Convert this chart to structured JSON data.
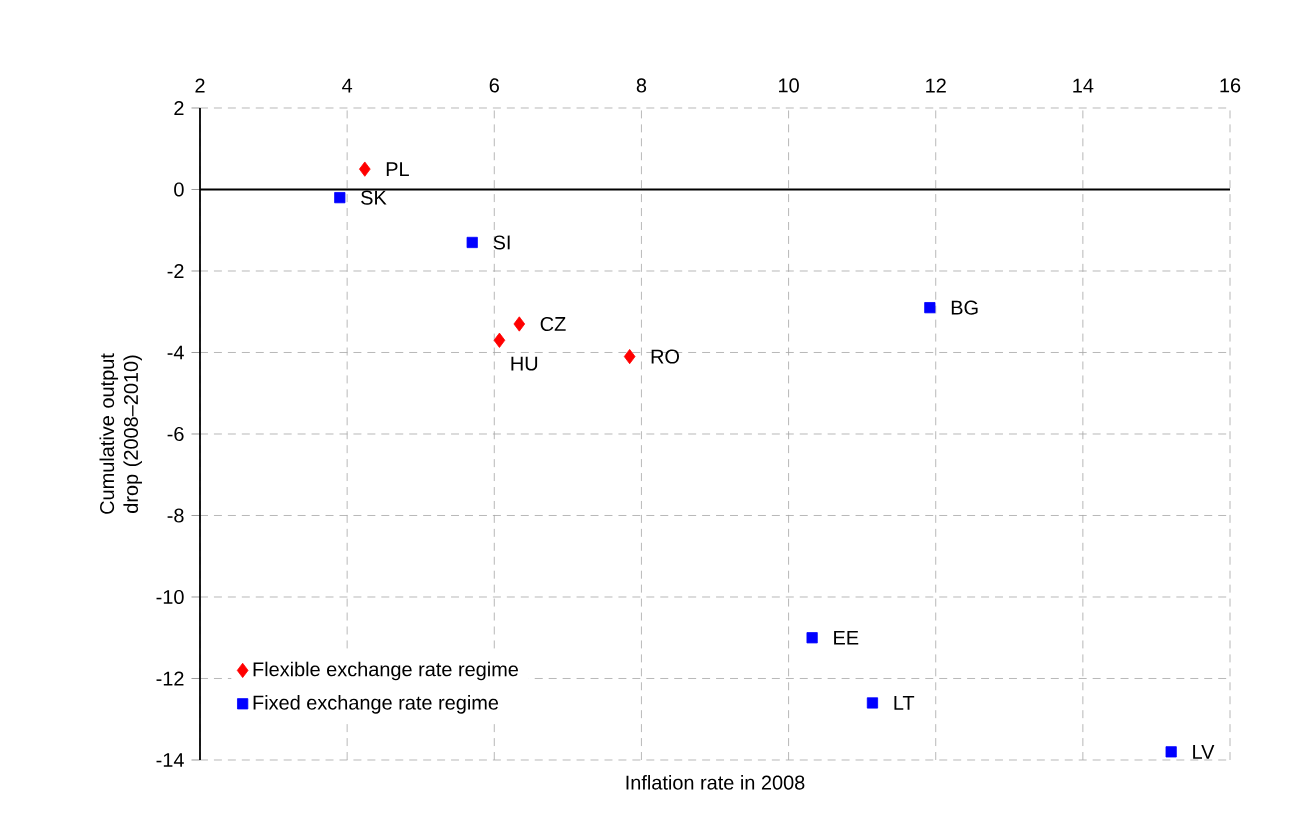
{
  "chart_data": {
    "type": "scatter",
    "xlabel": "Inflation rate in 2008",
    "ylabel": "Cumulative output drop (2008–2010)",
    "xlim": [
      2,
      16
    ],
    "xticks": [
      2,
      4,
      6,
      8,
      10,
      12,
      14,
      16
    ],
    "ylim": [
      -14,
      2
    ],
    "yticks": [
      -14,
      -12,
      -10,
      -8,
      -6,
      -4,
      -2,
      0,
      2
    ],
    "grid": true,
    "legend": "bottom left",
    "series": [
      {
        "name": "Flexible exchange rate regime",
        "color": "#ff0000",
        "marker": "diamond",
        "x": [
          4.24,
          6.34,
          6.07,
          7.84
        ],
        "values": [
          0.5,
          -3.3,
          -3.7,
          -4.1
        ]
      },
      {
        "name": "Fixed exchange rate regime",
        "color": "#0000ff",
        "marker": "square",
        "x": [
          3.9,
          5.7,
          11.92,
          10.32,
          11.14,
          15.2
        ],
        "values": [
          -0.2,
          -1.3,
          -2.9,
          -11.0,
          -12.6,
          -13.8
        ]
      }
    ],
    "annotations": [
      {
        "text": "PL",
        "x": 4.24,
        "y": 0.5
      },
      {
        "text": "CZ",
        "x": 6.34,
        "y": -3.3
      },
      {
        "text": "HU",
        "x": 6.07,
        "y": -3.7
      },
      {
        "text": "RO",
        "x": 7.84,
        "y": -4.1
      },
      {
        "text": "SK",
        "x": 3.9,
        "y": -0.2
      },
      {
        "text": "SI",
        "x": 5.7,
        "y": -1.3
      },
      {
        "text": "BG",
        "x": 11.92,
        "y": -2.9
      },
      {
        "text": "EE",
        "x": 10.32,
        "y": -11.0
      },
      {
        "text": "LT",
        "x": 11.14,
        "y": -12.6
      },
      {
        "text": "LV",
        "x": 15.2,
        "y": -13.8
      }
    ]
  }
}
